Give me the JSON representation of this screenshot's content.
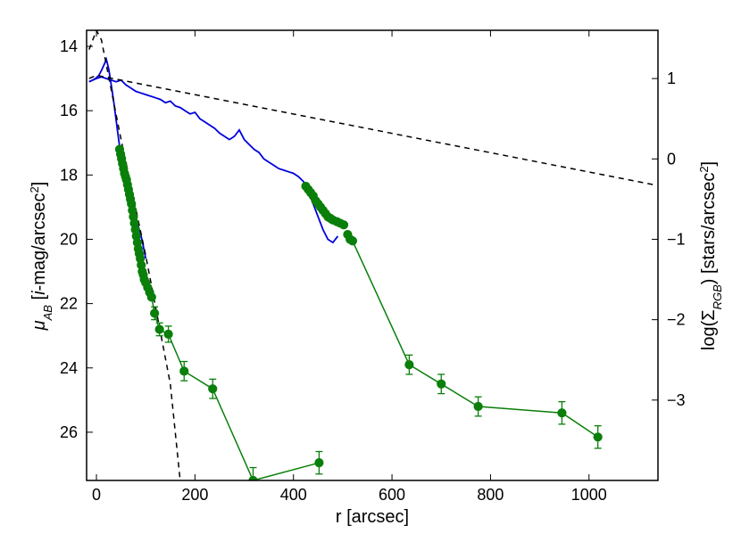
{
  "chart_data": {
    "type": "line",
    "xlabel": "r [arcsec]",
    "ylabel_left_parts": [
      {
        "t": "μ",
        "style": "italic"
      },
      {
        "t": "AB",
        "style": "italic-sub"
      },
      {
        "t": " [",
        "style": "normal"
      },
      {
        "t": "i",
        "style": "italic"
      },
      {
        "t": "-mag/arcsec",
        "style": "normal"
      },
      {
        "t": "2",
        "style": "sup"
      },
      {
        "t": "]",
        "style": "normal"
      }
    ],
    "ylabel_right_parts": [
      {
        "t": "log(Σ",
        "style": "normal"
      },
      {
        "t": "RGB",
        "style": "italic-sub"
      },
      {
        "t": ") [stars/arcsec",
        "style": "normal"
      },
      {
        "t": "2",
        "style": "sup"
      },
      {
        "t": "]",
        "style": "normal"
      }
    ],
    "xlim": [
      -20,
      1140
    ],
    "ylim_left": [
      27.5,
      13.5
    ],
    "ylim_right": [
      -4.0,
      1.6
    ],
    "x_ticks": [
      0,
      200,
      400,
      600,
      800,
      1000
    ],
    "y_ticks_left": [
      14,
      16,
      18,
      20,
      22,
      24,
      26
    ],
    "y_ticks_right": [
      1,
      0,
      -1,
      -2,
      -3
    ],
    "grid": false,
    "colors": {
      "blue": "#0000dd",
      "green": "#0a7f0a",
      "dashed": "#000000"
    },
    "series": [
      {
        "style": "blue-solid",
        "axis": "left",
        "points": [
          [
            -15,
            15.1
          ],
          [
            -8,
            15.05
          ],
          [
            -2,
            15.0
          ],
          [
            5,
            14.9
          ],
          [
            10,
            14.75
          ],
          [
            16,
            14.55
          ],
          [
            20,
            14.4
          ],
          [
            25,
            14.7
          ],
          [
            30,
            15.2
          ],
          [
            35,
            15.7
          ],
          [
            40,
            16.3
          ],
          [
            45,
            16.9
          ],
          [
            50,
            17.4
          ],
          [
            55,
            17.8
          ],
          [
            60,
            18.1
          ],
          [
            65,
            18.4
          ],
          [
            70,
            18.7
          ],
          [
            75,
            19.0
          ],
          [
            80,
            19.3
          ],
          [
            85,
            19.6
          ],
          [
            90,
            19.85
          ],
          [
            95,
            20.2
          ],
          [
            100,
            20.6
          ]
        ]
      },
      {
        "style": "blue-solid",
        "axis": "left",
        "points": [
          [
            -15,
            15.1
          ],
          [
            0,
            15.0
          ],
          [
            10,
            14.95
          ],
          [
            20,
            15.0
          ],
          [
            30,
            15.05
          ],
          [
            40,
            15.1
          ],
          [
            50,
            15.05
          ],
          [
            60,
            15.2
          ],
          [
            70,
            15.3
          ],
          [
            80,
            15.4
          ],
          [
            90,
            15.45
          ],
          [
            100,
            15.5
          ],
          [
            110,
            15.55
          ],
          [
            120,
            15.6
          ],
          [
            130,
            15.65
          ],
          [
            140,
            15.75
          ],
          [
            150,
            15.7
          ],
          [
            160,
            15.85
          ],
          [
            170,
            15.9
          ],
          [
            180,
            16.0
          ],
          [
            190,
            16.1
          ],
          [
            200,
            16.05
          ],
          [
            210,
            16.25
          ],
          [
            220,
            16.35
          ],
          [
            230,
            16.45
          ],
          [
            240,
            16.55
          ],
          [
            250,
            16.7
          ],
          [
            260,
            16.8
          ],
          [
            270,
            16.9
          ],
          [
            280,
            16.8
          ],
          [
            290,
            16.6
          ],
          [
            300,
            16.9
          ],
          [
            310,
            17.05
          ],
          [
            320,
            17.2
          ],
          [
            330,
            17.3
          ],
          [
            340,
            17.5
          ],
          [
            350,
            17.6
          ],
          [
            360,
            17.7
          ],
          [
            370,
            17.8
          ],
          [
            380,
            17.85
          ],
          [
            390,
            17.9
          ],
          [
            400,
            17.95
          ],
          [
            410,
            18.05
          ],
          [
            420,
            18.2
          ],
          [
            430,
            18.5
          ],
          [
            440,
            18.9
          ],
          [
            450,
            19.3
          ],
          [
            460,
            19.7
          ],
          [
            470,
            20.0
          ],
          [
            480,
            20.1
          ],
          [
            490,
            19.9
          ]
        ]
      },
      {
        "style": "dashed",
        "axis": "left",
        "points": [
          [
            -15,
            15.0
          ],
          [
            0,
            14.9
          ],
          [
            1130,
            18.3
          ]
        ]
      },
      {
        "style": "dashed",
        "axis": "left",
        "points": [
          [
            -15,
            14.1
          ],
          [
            0,
            13.5
          ],
          [
            10,
            13.8
          ],
          [
            50,
            16.9
          ],
          [
            100,
            20.5
          ],
          [
            150,
            24.5
          ],
          [
            170,
            27.5
          ]
        ]
      },
      {
        "style": "green-markers",
        "axis": "left",
        "points": [
          [
            47,
            17.2
          ],
          [
            49,
            17.35
          ],
          [
            51,
            17.5
          ],
          [
            53,
            17.65
          ],
          [
            55,
            17.8
          ],
          [
            57,
            17.95
          ],
          [
            59,
            18.05
          ],
          [
            61,
            18.15
          ],
          [
            63,
            18.3
          ],
          [
            65,
            18.45
          ],
          [
            67,
            18.6
          ],
          [
            69,
            18.75
          ],
          [
            71,
            18.9
          ],
          [
            73,
            19.1
          ],
          [
            75,
            19.3
          ],
          [
            77,
            19.5
          ],
          [
            79,
            19.7
          ],
          [
            81,
            19.9
          ],
          [
            83,
            20.1
          ],
          [
            85,
            20.3
          ],
          [
            87,
            20.45
          ],
          [
            89,
            20.6
          ],
          [
            91,
            20.8
          ],
          [
            93,
            21.0
          ],
          [
            95,
            21.1
          ],
          [
            97,
            21.25
          ],
          [
            100,
            21.35
          ],
          [
            104,
            21.5
          ],
          [
            108,
            21.65
          ],
          [
            112,
            21.8
          ],
          [
            118,
            22.3
          ],
          [
            128,
            22.8
          ],
          [
            146,
            22.95
          ],
          [
            178,
            24.1
          ],
          [
            236,
            24.65
          ],
          [
            318,
            27.5
          ],
          [
            452,
            26.95
          ]
        ],
        "error_bars": [
          0,
          0,
          0,
          0,
          0,
          0,
          0,
          0,
          0,
          0,
          0,
          0,
          0,
          0,
          0,
          0,
          0,
          0,
          0,
          0,
          0,
          0,
          0,
          0,
          0,
          0,
          0,
          0,
          0,
          0,
          0.2,
          0.2,
          0.25,
          0.3,
          0.3,
          0.4,
          0.35
        ],
        "line_from": 29
      },
      {
        "style": "green-markers",
        "axis": "left",
        "points": [
          [
            425,
            18.35
          ],
          [
            430,
            18.45
          ],
          [
            435,
            18.55
          ],
          [
            440,
            18.65
          ],
          [
            445,
            18.8
          ],
          [
            450,
            18.9
          ],
          [
            455,
            19.0
          ],
          [
            460,
            19.1
          ],
          [
            465,
            19.2
          ],
          [
            470,
            19.3
          ],
          [
            475,
            19.35
          ],
          [
            480,
            19.4
          ],
          [
            488,
            19.45
          ],
          [
            495,
            19.5
          ],
          [
            502,
            19.55
          ],
          [
            510,
            19.85
          ],
          [
            515,
            20.0
          ],
          [
            520,
            20.05
          ],
          [
            635,
            23.9
          ],
          [
            700,
            24.5
          ],
          [
            775,
            25.2
          ],
          [
            945,
            25.4
          ],
          [
            1018,
            26.15
          ]
        ],
        "error_bars": [
          0,
          0,
          0,
          0,
          0,
          0,
          0,
          0,
          0,
          0,
          0,
          0,
          0,
          0,
          0,
          0,
          0,
          0,
          0.3,
          0.3,
          0.3,
          0.35,
          0.35
        ],
        "line_from": 16
      }
    ]
  }
}
